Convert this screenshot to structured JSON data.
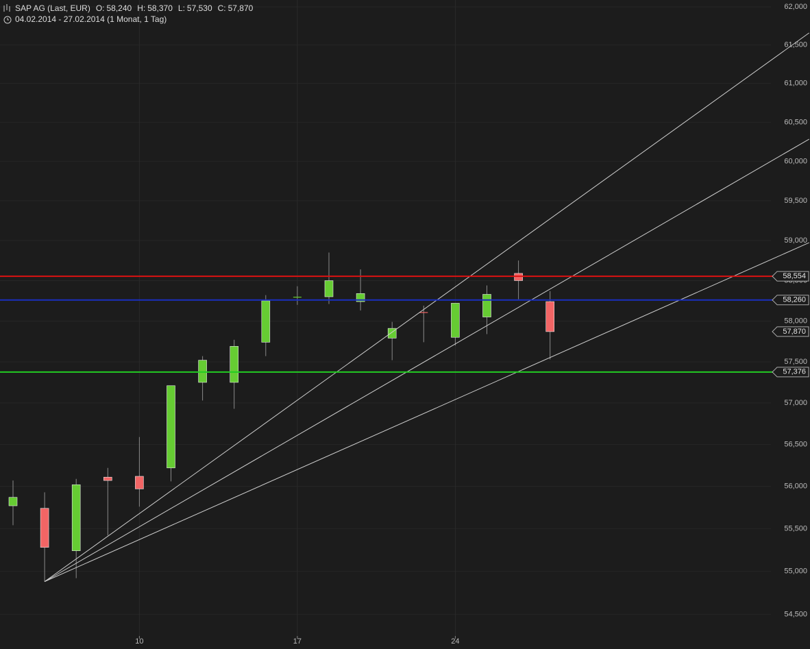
{
  "chart_data": {
    "type": "candlestick",
    "title": "SAP AG (Last, EUR)",
    "ohlc_summary": [
      {
        "label": "O:",
        "value": "58,240"
      },
      {
        "label": "H:",
        "value": "58,370"
      },
      {
        "label": "L:",
        "value": "57,530"
      },
      {
        "label": "C:",
        "value": "57,870"
      }
    ],
    "subtitle": "04.02.2014 - 27.02.2014 (1 Monat, 1 Tag)",
    "categories": [
      null,
      null,
      null,
      null,
      "10",
      null,
      null,
      null,
      null,
      "17",
      null,
      null,
      null,
      null,
      "24",
      null,
      null,
      null
    ],
    "open": [
      55770,
      55740,
      55240,
      56110,
      56120,
      56220,
      57250,
      57250,
      57740,
      58290,
      58300,
      58240,
      57790,
      58110,
      57800,
      58050,
      58590,
      58240
    ],
    "high": [
      56070,
      55930,
      56090,
      56220,
      56590,
      57210,
      57570,
      57770,
      58320,
      58430,
      58850,
      58640,
      57990,
      58190,
      58220,
      58440,
      58750,
      58370
    ],
    "low": [
      55540,
      54880,
      54920,
      55420,
      55760,
      56060,
      57030,
      56930,
      57570,
      58200,
      58210,
      58130,
      57520,
      57740,
      57700,
      57840,
      58270,
      57530
    ],
    "close": [
      55870,
      55280,
      56020,
      56070,
      55970,
      57210,
      57520,
      57690,
      58250,
      58300,
      58500,
      58340,
      57910,
      58100,
      58220,
      58330,
      58500,
      57870
    ],
    "up_color": "#66cc33",
    "down_color": "#f26565",
    "log_scale": true,
    "grid": true,
    "ylim": [
      54250,
      62090
    ],
    "yticks": [
      {
        "value": 54500,
        "label": "54,500"
      },
      {
        "value": 55000,
        "label": "55,000"
      },
      {
        "value": 55500,
        "label": "55,500"
      },
      {
        "value": 56000,
        "label": "56,000"
      },
      {
        "value": 56500,
        "label": "56,500"
      },
      {
        "value": 57000,
        "label": "57,000"
      },
      {
        "value": 57500,
        "label": "57,500"
      },
      {
        "value": 58000,
        "label": "58,000"
      },
      {
        "value": 58500,
        "label": "58,500"
      },
      {
        "value": 59000,
        "label": "59,000"
      },
      {
        "value": 59500,
        "label": "59,500"
      },
      {
        "value": 60000,
        "label": "60,000"
      },
      {
        "value": 60500,
        "label": "60,500"
      },
      {
        "value": 61000,
        "label": "61,000"
      },
      {
        "value": 61500,
        "label": "61,500"
      },
      {
        "value": 62000,
        "label": "62,000"
      }
    ],
    "levels": [
      {
        "value": 58554,
        "label": "58,554",
        "color": "#dd1111"
      },
      {
        "value": 58260,
        "label": "58,260",
        "color": "#1a2fc0"
      },
      {
        "value": 57376,
        "label": "57,376",
        "color": "#22cc22"
      }
    ],
    "last_price": {
      "value": 57870,
      "label": "57,870"
    },
    "fan_lines": [
      {
        "x": [
          1,
          25.2
        ],
        "values": [
          54880,
          61658
        ]
      },
      {
        "x": [
          1,
          25.2
        ],
        "values": [
          54880,
          60283
        ]
      },
      {
        "x": [
          1,
          25.2
        ],
        "values": [
          54880,
          58973
        ]
      }
    ],
    "fan_color": "#cfcfcf"
  }
}
